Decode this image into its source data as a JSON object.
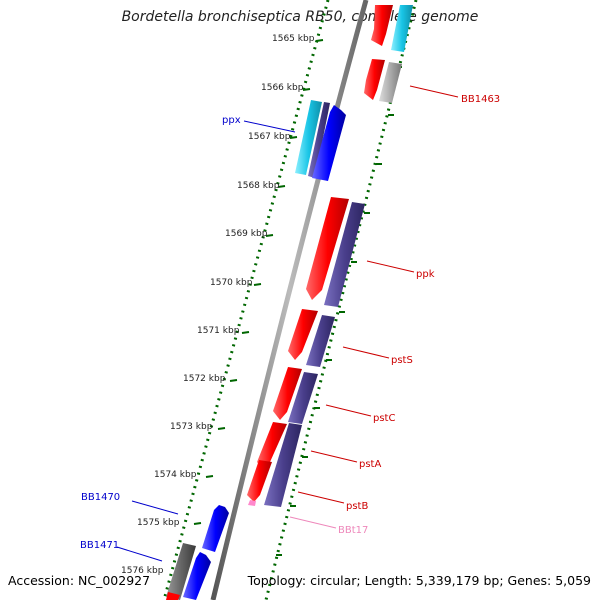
{
  "title": "Bordetella bronchiseptica RB50, complete genome",
  "footer": {
    "accession": "Accession: NC_002927",
    "topology": "Topology: circular; Length: 5,339,179 bp; Genes: 5,059"
  },
  "ticks": [
    "1565 kbp",
    "1566 kbp",
    "1567 kbp",
    "1568 kbp",
    "1569 kbp",
    "1570 kbp",
    "1571 kbp",
    "1572 kbp",
    "1573 kbp",
    "1574 kbp",
    "1575 kbp",
    "1576 kbp"
  ],
  "gene_labels": [
    {
      "text": "BB1463",
      "color": "#cc0000"
    },
    {
      "text": "ppx",
      "color": "#0000cc"
    },
    {
      "text": "ppk",
      "color": "#cc0000"
    },
    {
      "text": "pstS",
      "color": "#cc0000"
    },
    {
      "text": "pstC",
      "color": "#cc0000"
    },
    {
      "text": "pstA",
      "color": "#cc0000"
    },
    {
      "text": "pstB",
      "color": "#cc0000"
    },
    {
      "text": "BBt17",
      "color": "#ee88bb"
    },
    {
      "text": "BB1470",
      "color": "#0000cc"
    },
    {
      "text": "BB1471",
      "color": "#0000cc"
    }
  ],
  "colors": {
    "forward_cds": "#ff0000",
    "reverse_cds": "#0000ff",
    "cog_purple": "#4a3f8c",
    "cog_cyan": "#19c5e6",
    "cog_gray": "#888888",
    "trna": "#ff88cc",
    "tick_green": "#006600",
    "backbone": "#7a7a7a"
  }
}
